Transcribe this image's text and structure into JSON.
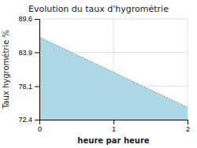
{
  "chart_data": {
    "type": "area",
    "title": "Evolution du taux d'hygrométrie",
    "xlabel": "heure par heure",
    "ylabel": "Taux hygrométrie %",
    "x": [
      0,
      2
    ],
    "values": [
      86.5,
      74.5
    ],
    "color": "#add8e6",
    "line_style": "dotted",
    "xlim": [
      0,
      2
    ],
    "ylim": [
      72.4,
      89.6
    ],
    "xticks": [
      0,
      1,
      2
    ],
    "yticks": [
      72.4,
      78.1,
      83.9,
      89.6
    ],
    "grid": true
  }
}
